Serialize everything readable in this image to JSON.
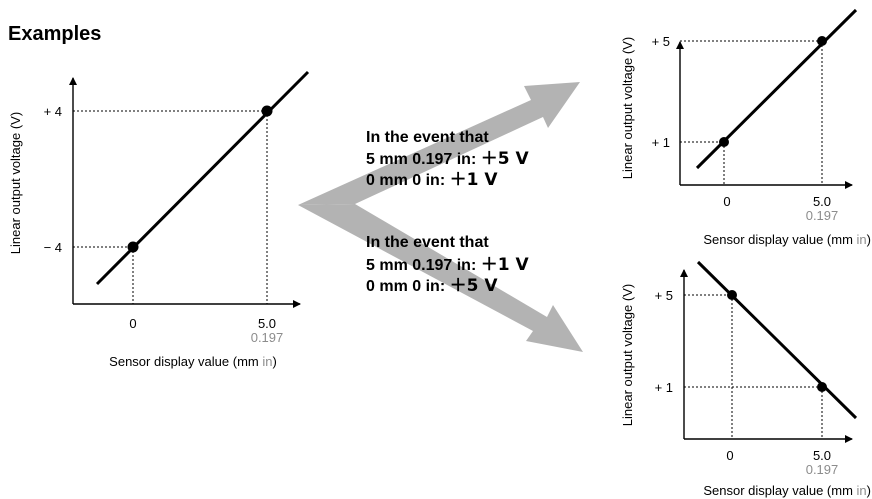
{
  "title": "Examples",
  "axis_labels": {
    "y": "Linear output voltage (V)",
    "x": "Sensor display value (mm",
    "x_unit_in": "in",
    "x_close": ")"
  },
  "ticks": {
    "zero": "0",
    "five_mm": "5.0",
    "five_in": "0.197",
    "left_plus4": "+ 4",
    "left_minus4": "− 4",
    "plus5": "+ 5",
    "plus1": "+ 1"
  },
  "events": [
    {
      "heading": "In the event that",
      "line1_mm": "5 mm",
      "line1_in": "0.197 in",
      "line1_sep": ":",
      "line1_v": "＋5 V",
      "line2_mm": "0 mm",
      "line2_in": "0 in",
      "line2_sep": ":",
      "line2_v": "＋1 V"
    },
    {
      "heading": "In the event that",
      "line1_mm": "5 mm",
      "line1_in": "0.197 in",
      "line1_sep": ":",
      "line1_v": "＋1 V",
      "line2_mm": "0 mm",
      "line2_in": "0 in",
      "line2_sep": ":",
      "line2_v": "＋5 V"
    }
  ],
  "colors": {
    "arrow": "#b3b3b3",
    "inch_text": "#8c8c8c"
  }
}
